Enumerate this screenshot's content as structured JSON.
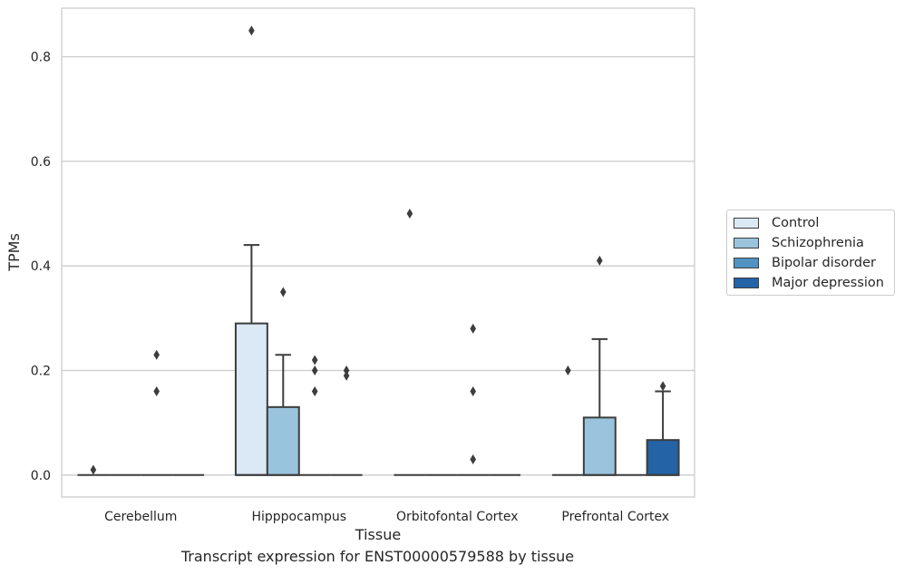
{
  "chart_data": {
    "type": "box",
    "xlabel": "Tissue",
    "ylabel": "TPMs",
    "ylim": [
      -0.042,
      0.893
    ],
    "yticks": [
      "0.0",
      "0.2",
      "0.4",
      "0.6",
      "0.8"
    ],
    "grid": "horizontal",
    "legend_position": "right",
    "categories": [
      "Cerebellum",
      "Hipppocampus",
      "Orbitofontal Cortex",
      "Prefrontal Cortex"
    ],
    "series": [
      {
        "name": "Control",
        "color": "#dbe8f5",
        "boxes": [
          {
            "q1": 0,
            "median": 0,
            "q3": 0,
            "whisker_low": 0,
            "whisker_high": 0,
            "outliers": [
              0.01
            ]
          },
          {
            "q1": 0,
            "median": 0,
            "q3": 0.29,
            "whisker_low": 0,
            "whisker_high": 0.44,
            "outliers": [
              0.85
            ]
          },
          {
            "q1": 0,
            "median": 0,
            "q3": 0,
            "whisker_low": 0,
            "whisker_high": 0,
            "outliers": [
              0.5
            ]
          },
          {
            "q1": 0,
            "median": 0,
            "q3": 0,
            "whisker_low": 0,
            "whisker_high": 0,
            "outliers": [
              0.2
            ]
          }
        ]
      },
      {
        "name": "Schizophrenia",
        "color": "#9ac4dd",
        "boxes": [
          {
            "q1": 0,
            "median": 0,
            "q3": 0,
            "whisker_low": 0,
            "whisker_high": 0,
            "outliers": []
          },
          {
            "q1": 0,
            "median": 0,
            "q3": 0.13,
            "whisker_low": 0,
            "whisker_high": 0.23,
            "outliers": [
              0.35
            ]
          },
          {
            "q1": 0,
            "median": 0,
            "q3": 0,
            "whisker_low": 0,
            "whisker_high": 0,
            "outliers": []
          },
          {
            "q1": 0,
            "median": 0,
            "q3": 0.11,
            "whisker_low": 0,
            "whisker_high": 0.26,
            "outliers": [
              0.41
            ]
          }
        ]
      },
      {
        "name": "Bipolar disorder",
        "color": "#5093c2",
        "boxes": [
          {
            "q1": 0,
            "median": 0,
            "q3": 0,
            "whisker_low": 0,
            "whisker_high": 0,
            "outliers": [
              0.23,
              0.16
            ]
          },
          {
            "q1": 0,
            "median": 0,
            "q3": 0,
            "whisker_low": 0,
            "whisker_high": 0,
            "outliers": [
              0.22,
              0.2,
              0.16
            ]
          },
          {
            "q1": 0,
            "median": 0,
            "q3": 0,
            "whisker_low": 0,
            "whisker_high": 0,
            "outliers": [
              0.28,
              0.16,
              0.03
            ]
          },
          {
            "q1": 0,
            "median": 0,
            "q3": 0,
            "whisker_low": 0,
            "whisker_high": 0,
            "outliers": []
          }
        ]
      },
      {
        "name": "Major depression",
        "color": "#2363a6",
        "boxes": [
          {
            "q1": 0,
            "median": 0,
            "q3": 0,
            "whisker_low": 0,
            "whisker_high": 0,
            "outliers": []
          },
          {
            "q1": 0,
            "median": 0,
            "q3": 0,
            "whisker_low": 0,
            "whisker_high": 0,
            "outliers": [
              0.2,
              0.19
            ]
          },
          {
            "q1": 0,
            "median": 0,
            "q3": 0,
            "whisker_low": 0,
            "whisker_high": 0,
            "outliers": []
          },
          {
            "q1": 0,
            "median": 0,
            "q3": 0.067,
            "whisker_low": 0,
            "whisker_high": 0.16,
            "outliers": [
              0.17
            ]
          }
        ]
      }
    ]
  },
  "caption": "Transcript expression for ENST00000579588 by tissue"
}
